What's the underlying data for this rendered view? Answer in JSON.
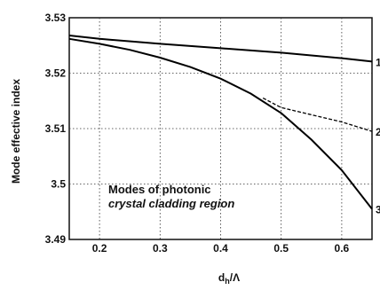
{
  "chart_data": {
    "type": "line",
    "xlabel": "d_h/Λ",
    "ylabel": "Mode effective index",
    "xlim": [
      0.15,
      0.65
    ],
    "ylim": [
      3.49,
      3.53
    ],
    "grid": true,
    "x_ticks": [
      "0.2",
      "0.3",
      "0.4",
      "0.5",
      "0.6"
    ],
    "y_ticks": [
      "3.49",
      "3.5",
      "3.51",
      "3.52",
      "3.53"
    ],
    "annotation": [
      "Modes of photonic",
      "crystal cladding region"
    ],
    "series": [
      {
        "name": "1",
        "style": "solid",
        "x": [
          0.15,
          0.2,
          0.3,
          0.4,
          0.5,
          0.6,
          0.65
        ],
        "y": [
          3.5268,
          3.5262,
          3.5253,
          3.5245,
          3.5237,
          3.5227,
          3.5221
        ]
      },
      {
        "name": "2",
        "style": "dashed",
        "x": [
          0.47,
          0.5,
          0.55,
          0.6,
          0.65
        ],
        "y": [
          3.5155,
          3.5138,
          3.5125,
          3.5112,
          3.5095
        ]
      },
      {
        "name": "3",
        "style": "solid",
        "x": [
          0.15,
          0.2,
          0.25,
          0.3,
          0.35,
          0.4,
          0.45,
          0.5,
          0.55,
          0.6,
          0.65
        ],
        "y": [
          3.5262,
          3.5253,
          3.5242,
          3.5228,
          3.5211,
          3.519,
          3.5163,
          3.5128,
          3.508,
          3.5025,
          3.4955
        ]
      }
    ]
  }
}
